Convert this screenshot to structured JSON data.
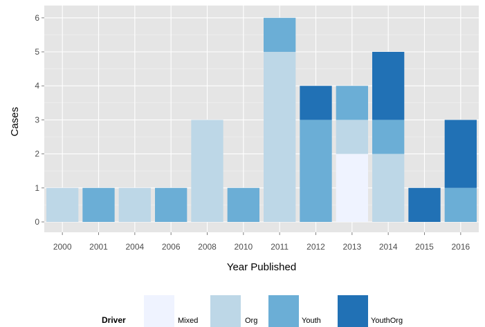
{
  "chart_data": {
    "type": "bar",
    "stacked": true,
    "xlabel": "Year Published",
    "ylabel": "Cases",
    "ylim": [
      0,
      6.3
    ],
    "yticks": [
      "0",
      "1",
      "2",
      "3",
      "4",
      "5",
      "6"
    ],
    "grid": true,
    "legend": {
      "title": "Driver",
      "placement": "bottom"
    },
    "categories": [
      "2000",
      "2001",
      "2004",
      "2006",
      "2008",
      "2010",
      "2011",
      "2012",
      "2013",
      "2014",
      "2015",
      "2016"
    ],
    "series": [
      {
        "name": "Mixed",
        "color": "#eff3ff",
        "values": [
          0,
          0,
          0,
          0,
          0,
          0,
          0,
          0,
          2,
          0,
          0,
          0
        ]
      },
      {
        "name": "Org",
        "color": "#bdd7e7",
        "values": [
          1,
          0,
          1,
          0,
          3,
          0,
          5,
          0,
          1,
          2,
          0,
          0
        ]
      },
      {
        "name": "Youth",
        "color": "#6baed6",
        "values": [
          0,
          1,
          0,
          1,
          0,
          1,
          1,
          3,
          1,
          1,
          0,
          1
        ]
      },
      {
        "name": "YouthOrg",
        "color": "#2171b5",
        "values": [
          0,
          0,
          0,
          0,
          0,
          0,
          0,
          1,
          0,
          2,
          1,
          2
        ]
      }
    ]
  },
  "colors": {
    "panel_background": "#e5e5e5",
    "grid_major": "#ffffff",
    "grid_minor": "#f2f2f2"
  }
}
